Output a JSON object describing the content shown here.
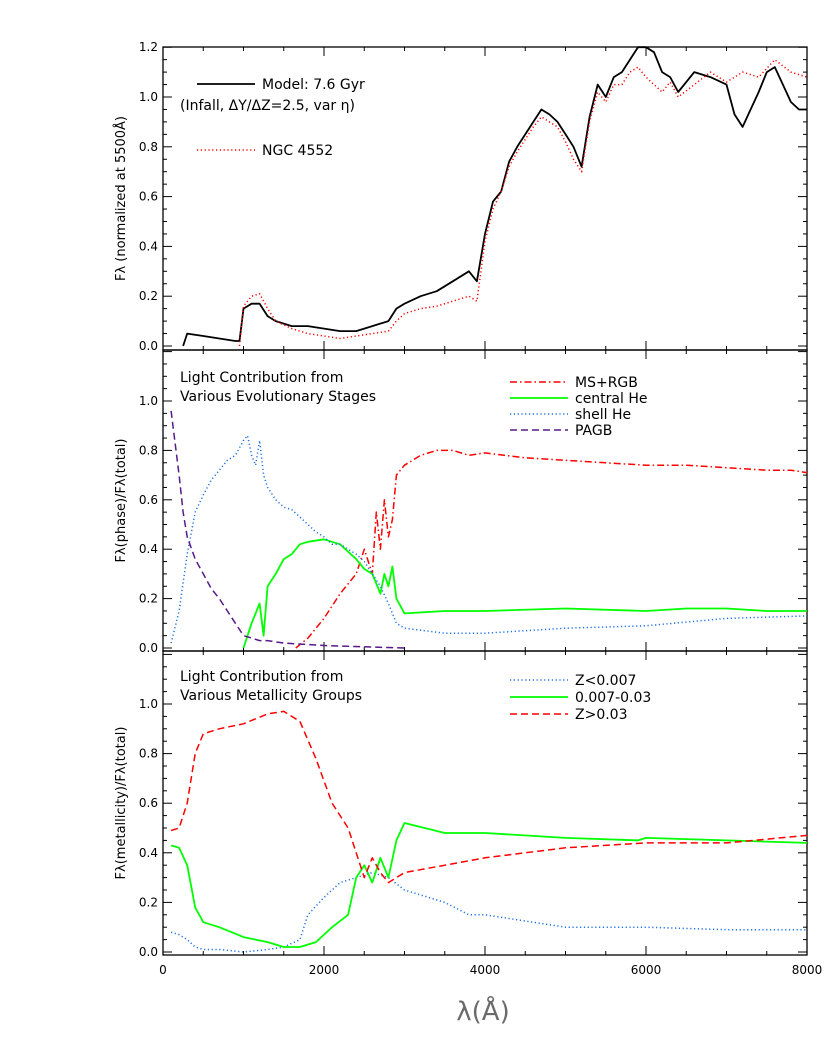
{
  "figure": {
    "x_axis_label": "λ(Å)",
    "x_tick_labels": [
      "0",
      "2000",
      "4000",
      "6000",
      "8000"
    ]
  },
  "chart_data": [
    {
      "type": "line",
      "ylabel": "Fλ (normalized at 5500Å)",
      "xlim": [
        0,
        8000
      ],
      "ylim": [
        0,
        1.2
      ],
      "y_tick_labels": [
        "0.0",
        "0.2",
        "0.4",
        "0.6",
        "0.8",
        "1.0",
        "1.2"
      ],
      "annotations": [
        "(Infall, ΔY/ΔZ=2.5, var η)"
      ],
      "series": [
        {
          "name": "Model: 7.6 Gyr",
          "color": "#000000",
          "style": "solid",
          "x": [
            250,
            300,
            500,
            700,
            900,
            950,
            1000,
            1100,
            1200,
            1300,
            1400,
            1600,
            1800,
            2000,
            2200,
            2400,
            2600,
            2800,
            2900,
            3000,
            3200,
            3400,
            3600,
            3800,
            3900,
            4000,
            4100,
            4200,
            4300,
            4400,
            4500,
            4600,
            4700,
            4800,
            4900,
            5000,
            5100,
            5200,
            5300,
            5400,
            5500,
            5600,
            5700,
            5800,
            5900,
            6000,
            6100,
            6200,
            6300,
            6400,
            6600,
            6800,
            7000,
            7100,
            7200,
            7300,
            7400,
            7500,
            7600,
            7700,
            7800,
            7900,
            8000
          ],
          "y": [
            0.0,
            0.05,
            0.04,
            0.03,
            0.02,
            0.02,
            0.15,
            0.17,
            0.17,
            0.12,
            0.1,
            0.08,
            0.08,
            0.07,
            0.06,
            0.06,
            0.08,
            0.1,
            0.15,
            0.17,
            0.2,
            0.22,
            0.26,
            0.3,
            0.26,
            0.45,
            0.58,
            0.62,
            0.74,
            0.8,
            0.85,
            0.9,
            0.95,
            0.93,
            0.9,
            0.85,
            0.8,
            0.72,
            0.92,
            1.05,
            1.0,
            1.08,
            1.1,
            1.15,
            1.2,
            1.2,
            1.18,
            1.1,
            1.08,
            1.02,
            1.1,
            1.08,
            1.05,
            0.93,
            0.88,
            0.95,
            1.02,
            1.1,
            1.12,
            1.05,
            0.98,
            0.95,
            0.95
          ]
        },
        {
          "name": "NGC 4552",
          "color": "#ff0000",
          "style": "dotted",
          "x": [
            950,
            1000,
            1100,
            1200,
            1300,
            1400,
            1600,
            1800,
            2000,
            2200,
            2400,
            2600,
            2800,
            2900,
            3000,
            3200,
            3400,
            3600,
            3800,
            3900,
            4000,
            4100,
            4200,
            4300,
            4400,
            4500,
            4600,
            4700,
            4800,
            4900,
            5000,
            5100,
            5200,
            5300,
            5400,
            5500,
            5600,
            5700,
            5800,
            5900,
            6000,
            6100,
            6200,
            6300,
            6400,
            6600,
            6800,
            7000,
            7200,
            7400,
            7600,
            7800,
            8000
          ],
          "y": [
            0.0,
            0.16,
            0.2,
            0.21,
            0.15,
            0.1,
            0.07,
            0.05,
            0.04,
            0.03,
            0.04,
            0.05,
            0.06,
            0.1,
            0.13,
            0.15,
            0.16,
            0.18,
            0.2,
            0.18,
            0.42,
            0.55,
            0.62,
            0.72,
            0.78,
            0.83,
            0.88,
            0.92,
            0.9,
            0.88,
            0.82,
            0.75,
            0.7,
            0.9,
            1.02,
            0.98,
            1.05,
            1.05,
            1.1,
            1.12,
            1.08,
            1.05,
            1.02,
            1.06,
            1.0,
            1.05,
            1.1,
            1.06,
            1.1,
            1.08,
            1.15,
            1.1,
            1.08
          ]
        }
      ]
    },
    {
      "type": "line",
      "ylabel": "Fλ(phase)/Fλ(total)",
      "xlim": [
        0,
        8000
      ],
      "ylim": [
        0,
        1.2
      ],
      "y_tick_labels": [
        "0.0",
        "0.2",
        "0.4",
        "0.6",
        "0.8",
        "1.0"
      ],
      "annotations": [
        "Light Contribution from",
        "Various Evolutionary Stages"
      ],
      "series": [
        {
          "name": "MS+RGB",
          "color": "#ff0000",
          "style": "dashdot",
          "x": [
            1650,
            1800,
            2000,
            2200,
            2400,
            2500,
            2550,
            2600,
            2650,
            2700,
            2750,
            2800,
            2850,
            2900,
            3000,
            3200,
            3400,
            3600,
            3800,
            4000,
            4500,
            5000,
            5500,
            6000,
            6500,
            7000,
            7500,
            7800,
            8000
          ],
          "y": [
            0.0,
            0.04,
            0.12,
            0.22,
            0.3,
            0.4,
            0.35,
            0.3,
            0.55,
            0.4,
            0.6,
            0.45,
            0.52,
            0.7,
            0.74,
            0.78,
            0.8,
            0.8,
            0.78,
            0.79,
            0.77,
            0.76,
            0.75,
            0.74,
            0.74,
            0.73,
            0.72,
            0.72,
            0.71
          ]
        },
        {
          "name": "central He",
          "color": "#00ff00",
          "style": "solid",
          "x": [
            1000,
            1100,
            1200,
            1250,
            1300,
            1400,
            1500,
            1600,
            1700,
            1800,
            2000,
            2200,
            2400,
            2500,
            2600,
            2700,
            2750,
            2800,
            2850,
            2900,
            3000,
            3500,
            4000,
            5000,
            6000,
            6500,
            7000,
            7500,
            8000
          ],
          "y": [
            0.0,
            0.1,
            0.18,
            0.05,
            0.25,
            0.3,
            0.36,
            0.38,
            0.42,
            0.43,
            0.44,
            0.42,
            0.36,
            0.32,
            0.3,
            0.22,
            0.3,
            0.25,
            0.33,
            0.2,
            0.14,
            0.15,
            0.15,
            0.16,
            0.15,
            0.16,
            0.16,
            0.15,
            0.15
          ]
        },
        {
          "name": "shell He",
          "color": "#1e6fe6",
          "style": "dotted",
          "x": [
            100,
            200,
            300,
            400,
            500,
            600,
            700,
            800,
            900,
            1000,
            1050,
            1100,
            1150,
            1200,
            1250,
            1300,
            1400,
            1500,
            1600,
            1700,
            1800,
            1900,
            2000,
            2100,
            2200,
            2300,
            2400,
            2500,
            2600,
            2700,
            2800,
            2900,
            3000,
            3500,
            4000,
            5000,
            6000,
            7000,
            8000
          ],
          "y": [
            0.02,
            0.15,
            0.38,
            0.55,
            0.62,
            0.68,
            0.72,
            0.76,
            0.78,
            0.84,
            0.86,
            0.78,
            0.74,
            0.84,
            0.7,
            0.65,
            0.6,
            0.57,
            0.56,
            0.53,
            0.5,
            0.47,
            0.45,
            0.42,
            0.42,
            0.4,
            0.38,
            0.35,
            0.3,
            0.25,
            0.18,
            0.1,
            0.08,
            0.06,
            0.06,
            0.08,
            0.09,
            0.12,
            0.13
          ]
        },
        {
          "name": "PAGB",
          "color": "#551a8b",
          "style": "dashed",
          "x": [
            100,
            200,
            250,
            300,
            400,
            500,
            600,
            700,
            800,
            900,
            1000,
            1100,
            1200,
            1300,
            1500,
            2000,
            2500,
            3000
          ],
          "y": [
            0.96,
            0.7,
            0.55,
            0.45,
            0.36,
            0.3,
            0.24,
            0.2,
            0.15,
            0.1,
            0.05,
            0.04,
            0.03,
            0.03,
            0.02,
            0.01,
            0.005,
            0.0
          ]
        }
      ]
    },
    {
      "type": "line",
      "ylabel": "Fλ(metallicity)/Fλ(total)",
      "xlim": [
        0,
        8000
      ],
      "ylim": [
        0,
        1.2
      ],
      "y_tick_labels": [
        "0.0",
        "0.2",
        "0.4",
        "0.6",
        "0.8",
        "1.0"
      ],
      "annotations": [
        "Light Contribution from",
        "Various Metallicity Groups"
      ],
      "series": [
        {
          "name": "Z<0.007",
          "color": "#1e6fe6",
          "style": "dotted",
          "x": [
            100,
            200,
            300,
            400,
            500,
            700,
            1000,
            1300,
            1500,
            1700,
            1800,
            2000,
            2200,
            2400,
            2600,
            2800,
            3000,
            3500,
            3800,
            4000,
            5000,
            6000,
            7000,
            8000
          ],
          "y": [
            0.08,
            0.07,
            0.05,
            0.02,
            0.01,
            0.01,
            0.0,
            0.01,
            0.02,
            0.05,
            0.15,
            0.22,
            0.28,
            0.3,
            0.32,
            0.3,
            0.25,
            0.2,
            0.15,
            0.15,
            0.1,
            0.1,
            0.09,
            0.09
          ]
        },
        {
          "name": "0.007-0.03",
          "color": "#00ff00",
          "style": "solid",
          "x": [
            100,
            200,
            300,
            400,
            500,
            700,
            1000,
            1300,
            1500,
            1700,
            1900,
            2100,
            2300,
            2400,
            2500,
            2600,
            2700,
            2800,
            2900,
            3000,
            3500,
            4000,
            5000,
            5900,
            6000,
            7000,
            8000
          ],
          "y": [
            0.43,
            0.42,
            0.35,
            0.18,
            0.12,
            0.1,
            0.06,
            0.04,
            0.02,
            0.02,
            0.04,
            0.1,
            0.15,
            0.3,
            0.35,
            0.28,
            0.38,
            0.3,
            0.45,
            0.52,
            0.48,
            0.48,
            0.46,
            0.45,
            0.46,
            0.45,
            0.44
          ]
        },
        {
          "name": "Z>0.03",
          "color": "#ff0000",
          "style": "dashed",
          "x": [
            100,
            200,
            300,
            400,
            500,
            700,
            1000,
            1300,
            1500,
            1700,
            1900,
            2100,
            2300,
            2400,
            2500,
            2600,
            2700,
            2800,
            2900,
            3000,
            3500,
            4000,
            5000,
            6000,
            7000,
            8000
          ],
          "y": [
            0.49,
            0.5,
            0.6,
            0.8,
            0.88,
            0.9,
            0.92,
            0.96,
            0.97,
            0.93,
            0.78,
            0.6,
            0.5,
            0.4,
            0.3,
            0.38,
            0.32,
            0.28,
            0.3,
            0.32,
            0.35,
            0.38,
            0.42,
            0.44,
            0.44,
            0.47
          ]
        }
      ]
    }
  ]
}
